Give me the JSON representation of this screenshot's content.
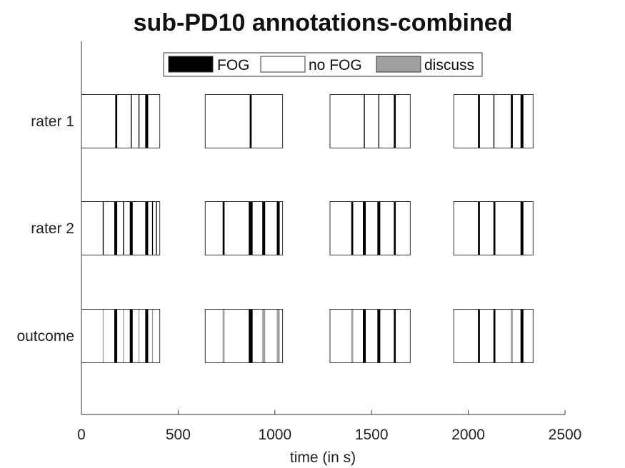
{
  "chart_data": {
    "type": "bar",
    "title": "sub-PD10  annotations-combined",
    "xlabel": "time (in s)",
    "ylabel": "",
    "xlim": [
      0,
      2500
    ],
    "xticks": [
      0,
      500,
      1000,
      1500,
      2000,
      2500
    ],
    "rows": [
      "rater 1",
      "rater 2",
      "outcome"
    ],
    "legend": {
      "placement": "top-center",
      "entries": [
        {
          "label": "FOG",
          "color": "#000000"
        },
        {
          "label": "no FOG",
          "color": "#ffffff"
        },
        {
          "label": "discuss",
          "color": "#a0a0a0"
        }
      ]
    },
    "segments": [
      [
        0,
        405
      ],
      [
        640,
        1040
      ],
      [
        1285,
        1700
      ],
      [
        1925,
        2335
      ]
    ],
    "series": [
      {
        "name": "rater 1",
        "events": [
          {
            "start": 175,
            "end": 185,
            "label": "FOG"
          },
          {
            "start": 255,
            "end": 260,
            "label": "FOG"
          },
          {
            "start": 295,
            "end": 300,
            "label": "FOG"
          },
          {
            "start": 330,
            "end": 345,
            "label": "FOG"
          },
          {
            "start": 870,
            "end": 880,
            "label": "FOG"
          },
          {
            "start": 1460,
            "end": 1465,
            "label": "FOG"
          },
          {
            "start": 1535,
            "end": 1540,
            "label": "FOG"
          },
          {
            "start": 1615,
            "end": 1625,
            "label": "FOG"
          },
          {
            "start": 2050,
            "end": 2060,
            "label": "FOG"
          },
          {
            "start": 2130,
            "end": 2135,
            "label": "FOG"
          },
          {
            "start": 2220,
            "end": 2230,
            "label": "FOG"
          },
          {
            "start": 2270,
            "end": 2285,
            "label": "FOG"
          }
        ]
      },
      {
        "name": "rater 2",
        "events": [
          {
            "start": 110,
            "end": 115,
            "label": "FOG"
          },
          {
            "start": 170,
            "end": 185,
            "label": "FOG"
          },
          {
            "start": 215,
            "end": 220,
            "label": "FOG"
          },
          {
            "start": 250,
            "end": 265,
            "label": "FOG"
          },
          {
            "start": 330,
            "end": 345,
            "label": "FOG"
          },
          {
            "start": 365,
            "end": 370,
            "label": "FOG"
          },
          {
            "start": 385,
            "end": 390,
            "label": "FOG"
          },
          {
            "start": 730,
            "end": 740,
            "label": "FOG"
          },
          {
            "start": 865,
            "end": 885,
            "label": "FOG"
          },
          {
            "start": 935,
            "end": 950,
            "label": "FOG"
          },
          {
            "start": 1010,
            "end": 1025,
            "label": "FOG"
          },
          {
            "start": 1395,
            "end": 1405,
            "label": "FOG"
          },
          {
            "start": 1455,
            "end": 1470,
            "label": "FOG"
          },
          {
            "start": 1530,
            "end": 1545,
            "label": "FOG"
          },
          {
            "start": 1615,
            "end": 1625,
            "label": "FOG"
          },
          {
            "start": 2050,
            "end": 2060,
            "label": "FOG"
          },
          {
            "start": 2130,
            "end": 2140,
            "label": "FOG"
          },
          {
            "start": 2270,
            "end": 2285,
            "label": "FOG"
          }
        ]
      },
      {
        "name": "outcome",
        "events": [
          {
            "start": 110,
            "end": 115,
            "label": "discuss"
          },
          {
            "start": 170,
            "end": 185,
            "label": "FOG"
          },
          {
            "start": 215,
            "end": 220,
            "label": "discuss"
          },
          {
            "start": 250,
            "end": 265,
            "label": "FOG"
          },
          {
            "start": 295,
            "end": 300,
            "label": "discuss"
          },
          {
            "start": 330,
            "end": 345,
            "label": "FOG"
          },
          {
            "start": 365,
            "end": 370,
            "label": "discuss"
          },
          {
            "start": 730,
            "end": 740,
            "label": "discuss"
          },
          {
            "start": 865,
            "end": 885,
            "label": "FOG"
          },
          {
            "start": 935,
            "end": 950,
            "label": "discuss"
          },
          {
            "start": 1010,
            "end": 1025,
            "label": "discuss"
          },
          {
            "start": 1395,
            "end": 1405,
            "label": "discuss"
          },
          {
            "start": 1455,
            "end": 1470,
            "label": "FOG"
          },
          {
            "start": 1530,
            "end": 1545,
            "label": "FOG"
          },
          {
            "start": 1615,
            "end": 1625,
            "label": "FOG"
          },
          {
            "start": 2050,
            "end": 2060,
            "label": "FOG"
          },
          {
            "start": 2130,
            "end": 2140,
            "label": "FOG"
          },
          {
            "start": 2220,
            "end": 2230,
            "label": "discuss"
          },
          {
            "start": 2270,
            "end": 2285,
            "label": "FOG"
          }
        ]
      }
    ]
  }
}
